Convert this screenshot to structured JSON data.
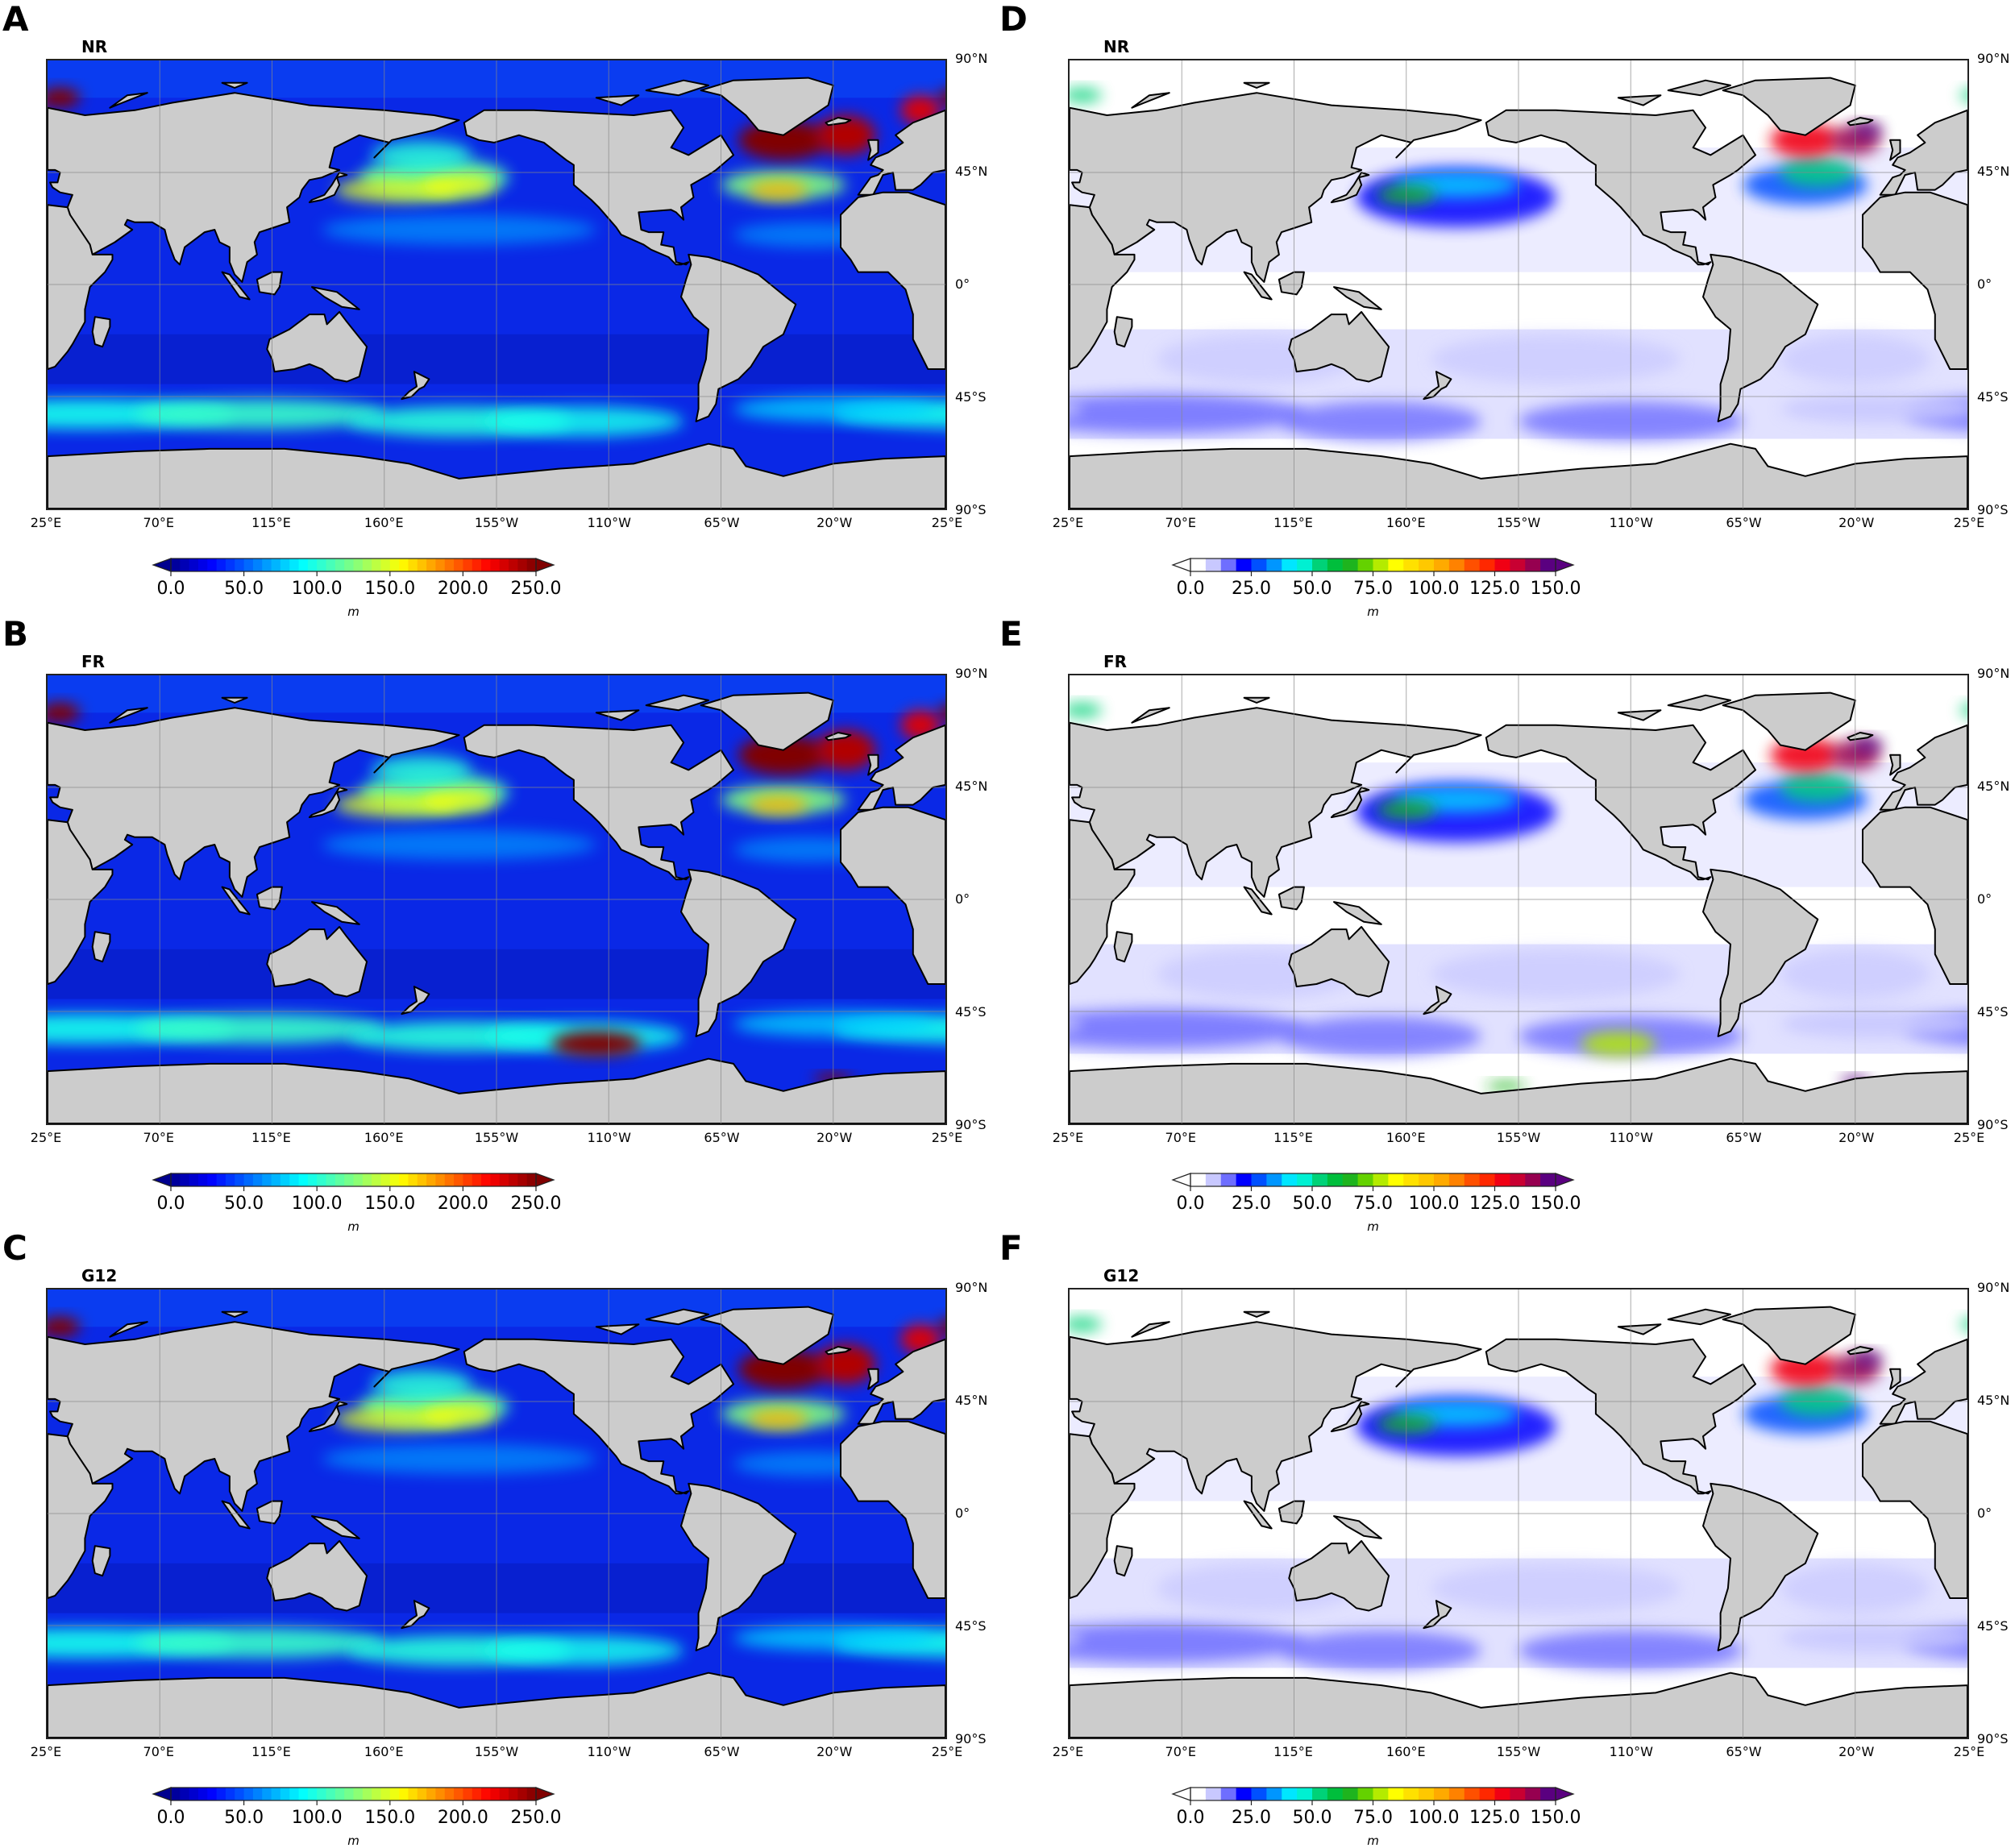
{
  "figure": {
    "panels": [
      {
        "id": "A",
        "letter": "A",
        "title": "NR",
        "scale": "mld",
        "column": "left",
        "row": 0
      },
      {
        "id": "B",
        "letter": "B",
        "title": "FR",
        "scale": "mld",
        "column": "left",
        "row": 1
      },
      {
        "id": "C",
        "letter": "C",
        "title": "G12",
        "scale": "mld",
        "column": "left",
        "row": 2
      },
      {
        "id": "D",
        "letter": "D",
        "title": "NR",
        "scale": "std",
        "column": "right",
        "row": 0
      },
      {
        "id": "E",
        "letter": "E",
        "title": "FR",
        "scale": "std",
        "column": "right",
        "row": 1
      },
      {
        "id": "F",
        "letter": "F",
        "title": "G12",
        "scale": "std",
        "column": "right",
        "row": 2
      }
    ],
    "lat_ticks": [
      "90°N",
      "45°N",
      "0°",
      "45°S",
      "90°S"
    ],
    "lon_ticks": [
      "25°E",
      "70°E",
      "115°E",
      "160°E",
      "155°W",
      "110°W",
      "65°W",
      "20°W",
      "25°E"
    ],
    "colorbars": {
      "mld": {
        "ticks": [
          "0.0",
          "50.0",
          "100.0",
          "150.0",
          "200.0",
          "250.0"
        ],
        "unit": "m",
        "min": 0,
        "max": 250,
        "extend": "both",
        "colormap": "jet"
      },
      "std": {
        "ticks": [
          "0.0",
          "25.0",
          "50.0",
          "75.0",
          "100.0",
          "125.0",
          "150.0"
        ],
        "unit": "m",
        "min": 0,
        "max": 150,
        "extend": "both",
        "levels": 24,
        "colors": [
          "#ffffff",
          "#c8c8ff",
          "#6e6eff",
          "#0000ff",
          "#0050ff",
          "#0096ff",
          "#00e6ff",
          "#00f0d2",
          "#00d278",
          "#00be3c",
          "#1eb41e",
          "#64d200",
          "#b4eb00",
          "#ffff00",
          "#ffe100",
          "#ffc800",
          "#ffaa00",
          "#ff8200",
          "#ff5000",
          "#ff2800",
          "#f00014",
          "#c80032",
          "#960050",
          "#5a0080"
        ]
      }
    }
  },
  "chart_data": [
    {
      "type": "heatmap",
      "panel": "A",
      "title": "NR",
      "xlabel": "",
      "ylabel": "",
      "x_ticks": [
        "25°E",
        "70°E",
        "115°E",
        "160°E",
        "155°W",
        "110°W",
        "65°W",
        "20°W",
        "25°E"
      ],
      "y_ticks": [
        "90°N",
        "45°N",
        "0°",
        "45°S",
        "90°S"
      ],
      "colorbar": {
        "ticks": [
          0,
          50,
          100,
          150,
          200,
          250
        ],
        "label": "m",
        "colormap": "jet"
      },
      "grid": true,
      "description": "Global mixed-layer depth field; maxima >250 m in subpolar North Atlantic/Labrador-Irminger seas and Barents Sea, 150-230 m in Kuroshio extension and Gulf Stream regions, 80-120 m band in Southern Ocean ~50°S, 20-50 m in tropics."
    },
    {
      "type": "heatmap",
      "panel": "B",
      "title": "FR",
      "xlabel": "",
      "ylabel": "",
      "x_ticks": [
        "25°E",
        "70°E",
        "115°E",
        "160°E",
        "155°W",
        "110°W",
        "65°W",
        "20°W",
        "25°E"
      ],
      "y_ticks": [
        "90°N",
        "45°N",
        "0°",
        "45°S",
        "90°S"
      ],
      "colorbar": {
        "ticks": [
          0,
          50,
          100,
          150,
          200,
          250
        ],
        "label": "m",
        "colormap": "jet"
      },
      "grid": true,
      "description": "Similar pattern to NR; additional >250 m hotspot in Southeast Pacific sector of Southern Ocean (~120°W, 55-60°S) and near Weddell Sea."
    },
    {
      "type": "heatmap",
      "panel": "C",
      "title": "G12",
      "xlabel": "",
      "ylabel": "",
      "x_ticks": [
        "25°E",
        "70°E",
        "115°E",
        "160°E",
        "155°W",
        "110°W",
        "65°W",
        "20°W",
        "25°E"
      ],
      "y_ticks": [
        "90°N",
        "45°N",
        "0°",
        "45°S",
        "90°S"
      ],
      "colorbar": {
        "ticks": [
          0,
          50,
          100,
          150,
          200,
          250
        ],
        "label": "m",
        "colormap": "jet"
      },
      "grid": true,
      "description": "Similar to NR with slightly weaker North Pacific maxima and Southern Ocean band."
    },
    {
      "type": "heatmap",
      "panel": "D",
      "title": "NR",
      "xlabel": "",
      "ylabel": "",
      "x_ticks": [
        "25°E",
        "70°E",
        "115°E",
        "160°E",
        "155°W",
        "110°W",
        "65°W",
        "20°W",
        "25°E"
      ],
      "y_ticks": [
        "90°N",
        "45°N",
        "0°",
        "45°S",
        "90°S"
      ],
      "colorbar": {
        "ticks": [
          0,
          25,
          50,
          75,
          100,
          125,
          150
        ],
        "label": "m",
        "levels": 24
      },
      "grid": true,
      "description": "Variability field; >150 m in subpolar North Atlantic, 50-100 m in Kuroshio and Gulf Stream extensions, 10-25 m in Southern Ocean, <6 m over most tropical/subtropical oceans."
    },
    {
      "type": "heatmap",
      "panel": "E",
      "title": "FR",
      "xlabel": "",
      "ylabel": "",
      "x_ticks": [
        "25°E",
        "70°E",
        "115°E",
        "160°E",
        "155°W",
        "110°W",
        "65°W",
        "20°W",
        "25°E"
      ],
      "y_ticks": [
        "90°N",
        "45°N",
        "0°",
        "45°S",
        "90°S"
      ],
      "colorbar": {
        "ticks": [
          0,
          25,
          50,
          75,
          100,
          125,
          150
        ],
        "label": "m",
        "levels": 24
      },
      "grid": true,
      "description": "Like NR plus 75-125 m patch in Southeast Pacific Southern Ocean and >150 m in Weddell Sea."
    },
    {
      "type": "heatmap",
      "panel": "F",
      "title": "G12",
      "xlabel": "",
      "ylabel": "",
      "x_ticks": [
        "25°E",
        "70°E",
        "115°E",
        "160°E",
        "155°W",
        "110°W",
        "65°W",
        "20°W",
        "25°E"
      ],
      "y_ticks": [
        "90°N",
        "45°N",
        "0°",
        "45°S",
        "90°S"
      ],
      "colorbar": {
        "ticks": [
          0,
          25,
          50,
          75,
          100,
          125,
          150
        ],
        "label": "m",
        "levels": 24
      },
      "grid": true,
      "description": "Like NR; >150 m in subpolar North Atlantic, 50-100 m in Kuroshio extension."
    }
  ]
}
